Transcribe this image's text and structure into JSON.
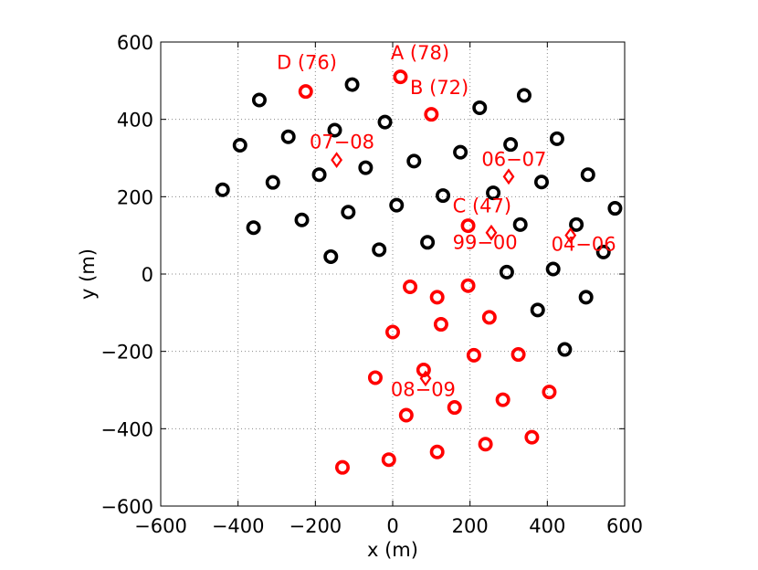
{
  "chart_data": {
    "type": "scatter",
    "title": "",
    "xlabel": "x (m)",
    "ylabel": "y (m)",
    "xlim": [
      -600,
      600
    ],
    "ylim": [
      -600,
      600
    ],
    "xticks": [
      -600,
      -400,
      -200,
      0,
      200,
      400,
      600
    ],
    "yticks": [
      -600,
      -400,
      -200,
      0,
      200,
      400,
      600
    ],
    "xtick_labels": [
      "−600",
      "−400",
      "−200",
      "0",
      "200",
      "400",
      "600"
    ],
    "ytick_labels": [
      "−600",
      "−400",
      "−200",
      "0",
      "200",
      "400",
      "600"
    ],
    "grid": true,
    "series": [
      {
        "marker": "circle",
        "color": "#000000",
        "points": [
          [
            -105,
            490
          ],
          [
            -345,
            450
          ],
          [
            -150,
            372
          ],
          [
            -20,
            393
          ],
          [
            -395,
            333
          ],
          [
            -270,
            355
          ],
          [
            -190,
            257
          ],
          [
            -70,
            275
          ],
          [
            -310,
            237
          ],
          [
            -440,
            218
          ],
          [
            -115,
            160
          ],
          [
            -235,
            140
          ],
          [
            -360,
            120
          ],
          [
            -160,
            45
          ],
          [
            -35,
            63
          ],
          [
            10,
            178
          ],
          [
            55,
            292
          ],
          [
            130,
            203
          ],
          [
            90,
            82
          ],
          [
            225,
            430
          ],
          [
            175,
            315
          ],
          [
            340,
            462
          ],
          [
            305,
            335
          ],
          [
            425,
            350
          ],
          [
            260,
            210
          ],
          [
            385,
            238
          ],
          [
            505,
            257
          ],
          [
            575,
            170
          ],
          [
            330,
            128
          ],
          [
            475,
            128
          ],
          [
            545,
            57
          ],
          [
            295,
            5
          ],
          [
            415,
            13
          ],
          [
            500,
            -60
          ],
          [
            375,
            -93
          ],
          [
            445,
            -195
          ]
        ]
      },
      {
        "marker": "circle",
        "color": "#ff0000",
        "points": [
          [
            -225,
            472
          ],
          [
            20,
            510
          ],
          [
            100,
            413
          ],
          [
            195,
            125
          ],
          [
            45,
            -33
          ],
          [
            115,
            -60
          ],
          [
            195,
            -30
          ],
          [
            0,
            -150
          ],
          [
            125,
            -130
          ],
          [
            250,
            -112
          ],
          [
            210,
            -210
          ],
          [
            325,
            -208
          ],
          [
            -45,
            -268
          ],
          [
            80,
            -248
          ],
          [
            35,
            -365
          ],
          [
            160,
            -345
          ],
          [
            285,
            -325
          ],
          [
            405,
            -305
          ],
          [
            -130,
            -500
          ],
          [
            -10,
            -480
          ],
          [
            115,
            -460
          ],
          [
            240,
            -440
          ],
          [
            360,
            -422
          ]
        ]
      },
      {
        "marker": "diamond",
        "color": "#ff0000",
        "points": [
          [
            -145,
            295
          ],
          [
            300,
            252
          ],
          [
            255,
            107
          ],
          [
            460,
            100
          ],
          [
            85,
            -270
          ]
        ]
      }
    ],
    "annotations": [
      {
        "text": "D (76)",
        "x": -300,
        "y": 530
      },
      {
        "text": "A (78)",
        "x": -5,
        "y": 555
      },
      {
        "text": "B (72)",
        "x": 45,
        "y": 465
      },
      {
        "text": "07−08",
        "x": -215,
        "y": 325
      },
      {
        "text": "06−07",
        "x": 230,
        "y": 280
      },
      {
        "text": "C (47)",
        "x": 155,
        "y": 160
      },
      {
        "text": "99−00",
        "x": 155,
        "y": 65
      },
      {
        "text": "04−06",
        "x": 410,
        "y": 60
      },
      {
        "text": "08−09",
        "x": -5,
        "y": -315
      }
    ],
    "marker_color_primary": "#000000",
    "marker_color_highlight": "#ff0000"
  }
}
